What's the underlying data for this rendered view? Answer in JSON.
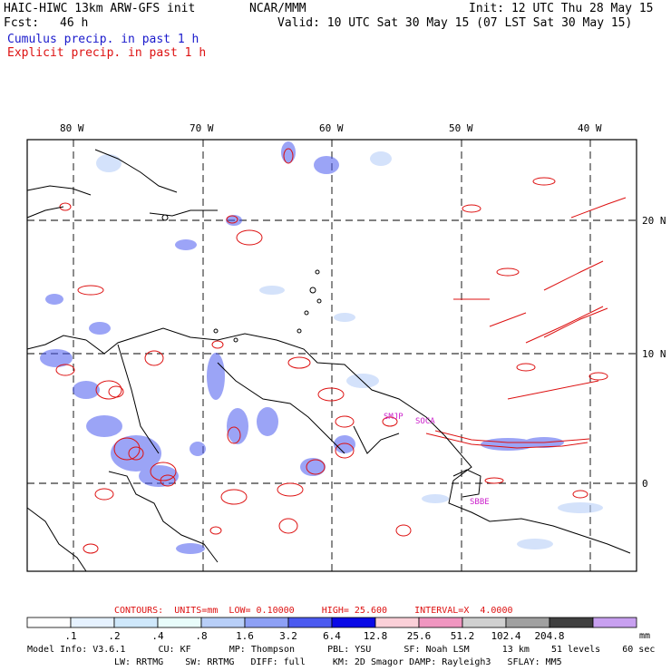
{
  "header": {
    "model_title": "HAIC-HIWC 13km ARW-GFS init",
    "org": "NCAR/MMM",
    "init": "Init: 12 UTC Thu 28 May 15",
    "fcst_label": "Fcst:",
    "fcst_value": "46 h",
    "valid": "Valid: 10 UTC Sat 30 May 15 (07 LST Sat 30 May 15)",
    "legend_cumulus": "Cumulus precip. in past 1 h",
    "legend_explicit": "Explicit precip. in past 1 h"
  },
  "map": {
    "lon_labels": [
      "80 W",
      "70 W",
      "60 W",
      "50 W",
      "40 W"
    ],
    "lat_labels": [
      "20 N",
      "10 N",
      "0"
    ],
    "stations": [
      "SMJP",
      "SOCA",
      "SBBE"
    ],
    "colors": {
      "explicit": "#dd1111",
      "cumulus": "#3b4ef0",
      "coast": "#000000",
      "station": "#cc22cc"
    }
  },
  "contours": {
    "header": "CONTOURS:  UNITS=mm  LOW= 0.10000     HIGH= 25.600     INTERVAL=X  4.0000"
  },
  "colorbar": {
    "colors": [
      "#ffffff",
      "#e6f2ff",
      "#cfe8fb",
      "#e8fcfa",
      "#b8cff8",
      "#8da0f5",
      "#4b5af0",
      "#0a0ae6",
      "#fbd0d8",
      "#f096c0",
      "#d0d0d0",
      "#a0a0a0",
      "#404040",
      "#c8a0f0"
    ],
    "labels": [
      ".1",
      ".2",
      ".4",
      ".8",
      "1.6",
      "3.2",
      "6.4",
      "12.8",
      "25.6",
      "51.2",
      "102.4",
      "204.8"
    ],
    "unit": "mm"
  },
  "model_info": {
    "line1": "Model Info: V3.6.1      CU: KF       MP: Thompson      PBL: YSU      SF: Noah LSM      13 km    51 levels    60 sec",
    "line2": "LW: RRTMG    SW: RRTMG   DIFF: full     KM: 2D Smagor DAMP: Rayleigh3   SFLAY: MM5"
  }
}
